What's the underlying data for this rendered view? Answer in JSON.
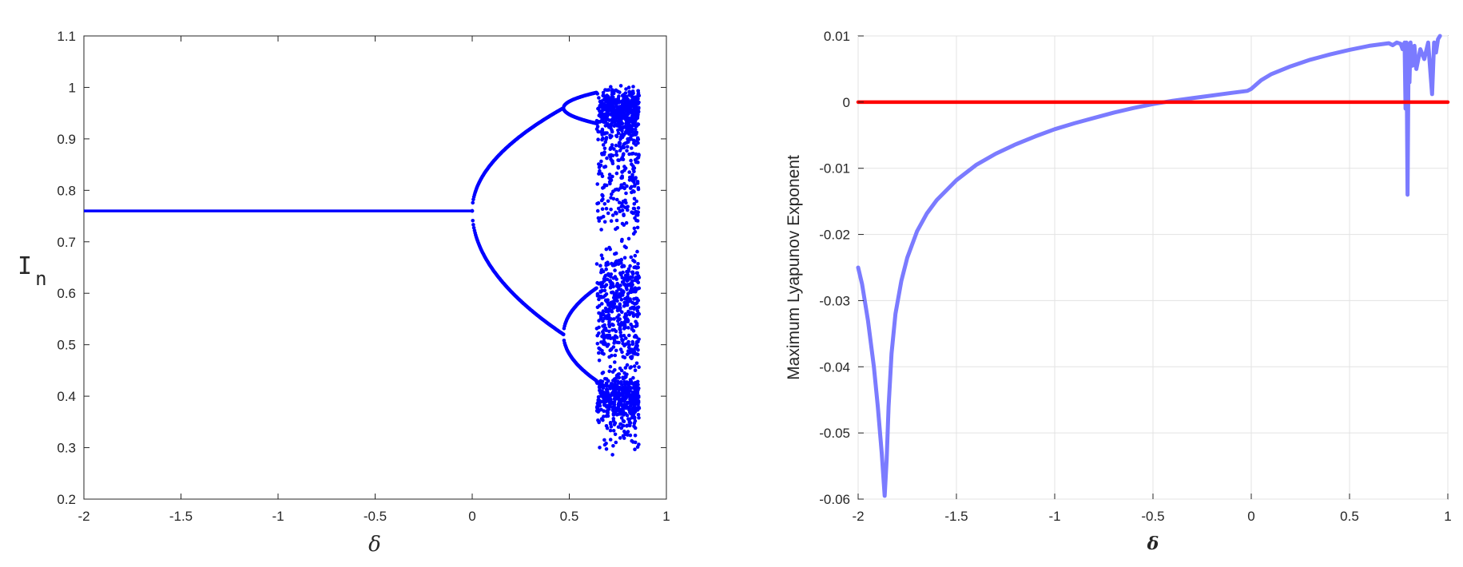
{
  "chart_data": [
    {
      "type": "scatter",
      "title": "",
      "xlabel": "δ",
      "ylabel_main": "I",
      "ylabel_sub": "n",
      "xlim": [
        -2,
        1
      ],
      "ylim": [
        0.2,
        1.1
      ],
      "xticks": [
        "-2",
        "-1.5",
        "-1",
        "-0.5",
        "0",
        "0.5",
        "1"
      ],
      "yticks": [
        "0.2",
        "0.3",
        "0.4",
        "0.5",
        "0.6",
        "0.7",
        "0.8",
        "0.9",
        "1",
        "1.1"
      ],
      "grid": false,
      "point_color": "#0000ff",
      "regions": {
        "fixed_point": {
          "x_range": [
            -2,
            0.0
          ],
          "value": 0.76
        },
        "period_2": {
          "x_range": [
            0.0,
            0.47
          ],
          "bifurcation_x": 0.0,
          "upper_end": 0.96,
          "lower_end": 0.52
        },
        "period_4": {
          "x_range": [
            0.47,
            0.64
          ],
          "bifurcation_x": 0.47,
          "branch_ends": [
            0.99,
            0.93,
            0.61,
            0.43
          ]
        },
        "chaos": {
          "x_range": [
            0.64,
            0.86
          ],
          "y_range": [
            0.28,
            1.04
          ]
        }
      }
    },
    {
      "type": "line",
      "title": "",
      "xlabel": "δ",
      "ylabel": "Maximum Lyapunov Exponent",
      "xlim": [
        -2,
        1
      ],
      "ylim": [
        -0.06,
        0.01
      ],
      "xticks": [
        "-2",
        "-1.5",
        "-1",
        "-0.5",
        "0",
        "0.5",
        "1"
      ],
      "yticks": [
        "-0.06",
        "-0.05",
        "-0.04",
        "-0.03",
        "-0.02",
        "-0.01",
        "0",
        "0.01"
      ],
      "grid": true,
      "series": [
        {
          "color": "#7b7bff",
          "x": [
            -2.0,
            -1.98,
            -1.95,
            -1.92,
            -1.9,
            -1.88,
            -1.865,
            -1.855,
            -1.845,
            -1.83,
            -1.81,
            -1.78,
            -1.75,
            -1.7,
            -1.65,
            -1.6,
            -1.5,
            -1.4,
            -1.3,
            -1.2,
            -1.1,
            -1.0,
            -0.9,
            -0.8,
            -0.7,
            -0.6,
            -0.5,
            -0.4,
            -0.3,
            -0.2,
            -0.1,
            -0.02,
            0.0,
            0.05,
            0.1,
            0.2,
            0.3,
            0.4,
            0.5,
            0.6,
            0.7,
            0.72,
            0.74,
            0.76,
            0.77,
            0.78,
            0.785,
            0.79,
            0.795,
            0.8,
            0.805,
            0.81,
            0.82,
            0.83,
            0.84,
            0.86,
            0.88,
            0.9,
            0.92,
            0.93,
            0.94,
            0.95,
            0.96
          ],
          "y": [
            -0.025,
            -0.0275,
            -0.033,
            -0.04,
            -0.046,
            -0.053,
            -0.0595,
            -0.054,
            -0.046,
            -0.038,
            -0.032,
            -0.027,
            -0.0235,
            -0.0195,
            -0.0168,
            -0.0148,
            -0.0118,
            -0.0095,
            -0.0078,
            -0.0064,
            -0.0052,
            -0.0041,
            -0.0032,
            -0.0024,
            -0.0016,
            -0.0009,
            -0.0003,
            0.0002,
            0.0006,
            0.001,
            0.0014,
            0.0017,
            0.002,
            0.0033,
            0.0042,
            0.0054,
            0.0064,
            0.0072,
            0.0079,
            0.0085,
            0.0089,
            0.0086,
            0.009,
            0.0088,
            0.008,
            0.009,
            -0.001,
            0.009,
            -0.014,
            0.006,
            0.003,
            0.009,
            0.0055,
            0.0085,
            0.005,
            0.008,
            0.0065,
            0.009,
            0.0012,
            0.009,
            0.0075,
            0.0095,
            0.01
          ]
        },
        {
          "color": "#ff0000",
          "x": [
            -2,
            1
          ],
          "y": [
            0,
            0
          ]
        }
      ]
    }
  ]
}
